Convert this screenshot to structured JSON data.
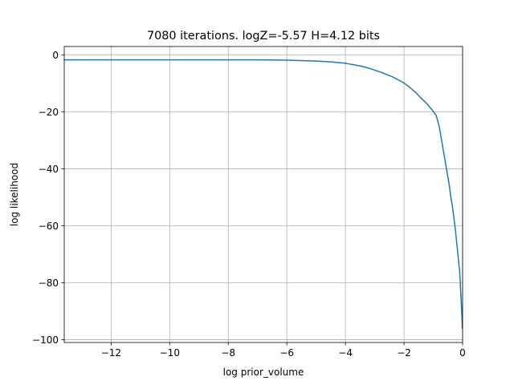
{
  "chart_data": {
    "type": "line",
    "title": "7080 iterations. logZ=-5.57 H=4.12 bits",
    "xlabel": "log prior_volume",
    "ylabel": "log likelihood",
    "xlim": [
      -13.6,
      0.0
    ],
    "ylim": [
      -101,
      3
    ],
    "xticks": [
      -12,
      -10,
      -8,
      -6,
      -4,
      -2,
      0
    ],
    "yticks": [
      0,
      -20,
      -40,
      -60,
      -80,
      -100
    ],
    "xtick_labels": [
      "−12",
      "−10",
      "−8",
      "−6",
      "−4",
      "−2",
      "0"
    ],
    "ytick_labels": [
      "0",
      "−20",
      "−40",
      "−60",
      "−80",
      "−100"
    ],
    "grid": true,
    "color": "#1f77b4",
    "series": [
      {
        "x": [
          -13.6,
          -12.0,
          -10.0,
          -8.0,
          -7.0,
          -6.0,
          -5.0,
          -4.5,
          -4.0,
          -3.5,
          -3.2,
          -3.0,
          -2.8,
          -2.6,
          -2.4,
          -2.2,
          -2.0,
          -1.8,
          -1.6,
          -1.4,
          -1.2,
          -1.0,
          -0.9,
          -0.8,
          -0.75,
          -0.7,
          -0.65,
          -0.6,
          -0.55,
          -0.5,
          -0.45,
          -0.4,
          -0.35,
          -0.3,
          -0.25,
          -0.2,
          -0.15,
          -0.1,
          -0.08,
          -0.06,
          -0.04,
          -0.02,
          -0.01
        ],
        "y": [
          -1.7,
          -1.7,
          -1.7,
          -1.7,
          -1.7,
          -1.8,
          -2.1,
          -2.4,
          -2.9,
          -3.8,
          -4.6,
          -5.3,
          -6.0,
          -6.8,
          -7.6,
          -8.7,
          -9.8,
          -11.4,
          -13.2,
          -15.3,
          -17.3,
          -19.8,
          -21.3,
          -25.0,
          -28.0,
          -31.0,
          -34.0,
          -37.0,
          -40.0,
          -43.0,
          -46.0,
          -50.0,
          -53.0,
          -57.0,
          -61.0,
          -66.0,
          -71.0,
          -76.0,
          -80.0,
          -84.0,
          -88.0,
          -92.0,
          -96.0
        ]
      }
    ]
  }
}
